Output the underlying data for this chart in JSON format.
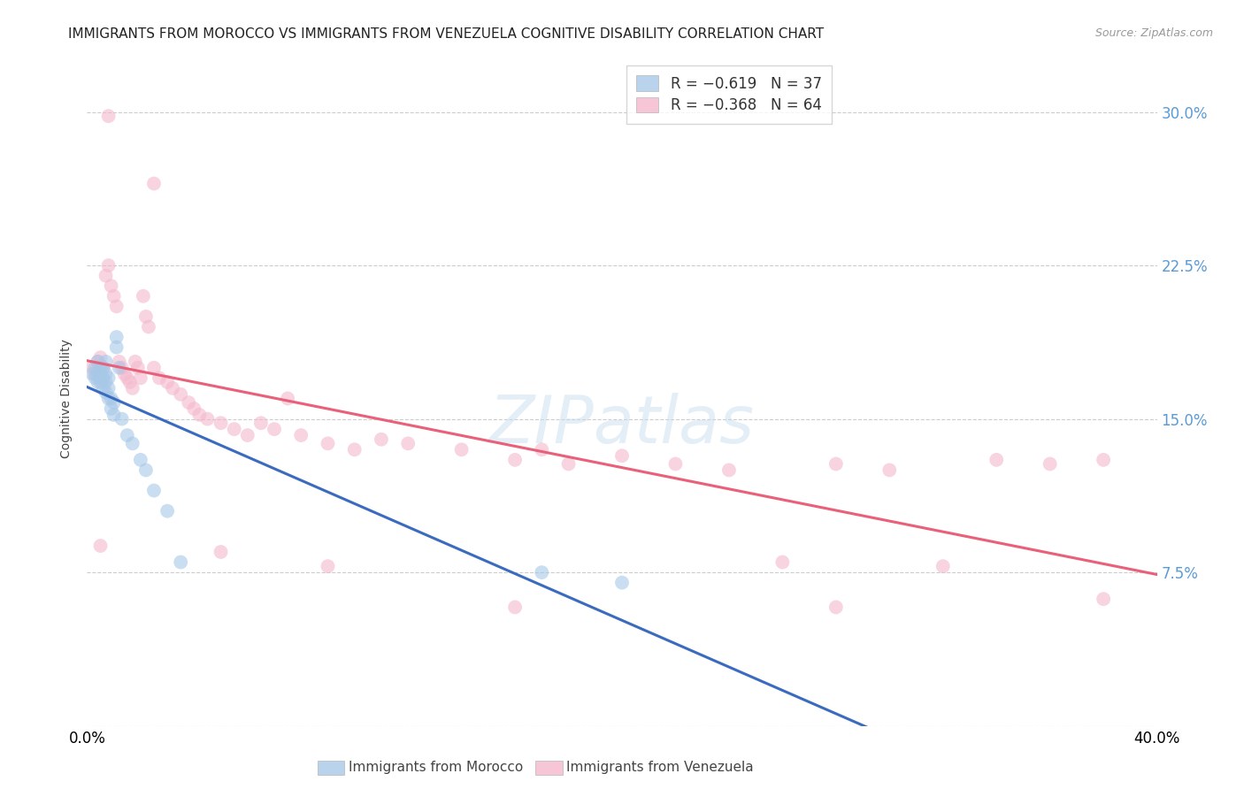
{
  "title": "IMMIGRANTS FROM MOROCCO VS IMMIGRANTS FROM VENEZUELA COGNITIVE DISABILITY CORRELATION CHART",
  "source": "Source: ZipAtlas.com",
  "ylabel": "Cognitive Disability",
  "ytick_values": [
    0.0,
    0.075,
    0.15,
    0.225,
    0.3
  ],
  "ytick_labels": [
    "",
    "7.5%",
    "15.0%",
    "22.5%",
    "30.0%"
  ],
  "xlim": [
    0.0,
    0.4
  ],
  "ylim": [
    0.0,
    0.32
  ],
  "morocco_color": "#a8c8e8",
  "venezuela_color": "#f4b8cc",
  "trendline_morocco_color": "#3a6bbf",
  "trendline_venezuela_color": "#e8607a",
  "background_color": "#ffffff",
  "watermark_text": "ZIPatlas",
  "morocco_x": [
    0.002,
    0.003,
    0.003,
    0.004,
    0.004,
    0.004,
    0.005,
    0.005,
    0.005,
    0.005,
    0.006,
    0.006,
    0.006,
    0.007,
    0.007,
    0.007,
    0.007,
    0.008,
    0.008,
    0.008,
    0.009,
    0.009,
    0.01,
    0.01,
    0.011,
    0.011,
    0.012,
    0.013,
    0.015,
    0.017,
    0.02,
    0.022,
    0.025,
    0.03,
    0.035,
    0.17,
    0.2
  ],
  "morocco_y": [
    0.172,
    0.175,
    0.17,
    0.168,
    0.172,
    0.178,
    0.173,
    0.17,
    0.175,
    0.168,
    0.165,
    0.17,
    0.175,
    0.163,
    0.168,
    0.172,
    0.178,
    0.16,
    0.165,
    0.17,
    0.155,
    0.16,
    0.152,
    0.158,
    0.185,
    0.19,
    0.175,
    0.15,
    0.142,
    0.138,
    0.13,
    0.125,
    0.115,
    0.105,
    0.08,
    0.075,
    0.07
  ],
  "venezuela_x": [
    0.002,
    0.003,
    0.004,
    0.005,
    0.006,
    0.007,
    0.008,
    0.009,
    0.01,
    0.011,
    0.012,
    0.013,
    0.014,
    0.015,
    0.016,
    0.017,
    0.018,
    0.019,
    0.02,
    0.021,
    0.022,
    0.023,
    0.025,
    0.027,
    0.03,
    0.032,
    0.035,
    0.038,
    0.04,
    0.042,
    0.045,
    0.05,
    0.055,
    0.06,
    0.065,
    0.07,
    0.075,
    0.08,
    0.09,
    0.1,
    0.11,
    0.12,
    0.14,
    0.16,
    0.18,
    0.2,
    0.22,
    0.24,
    0.26,
    0.28,
    0.3,
    0.32,
    0.34,
    0.36,
    0.38,
    0.008,
    0.025,
    0.05,
    0.09,
    0.16,
    0.005,
    0.17,
    0.28,
    0.38
  ],
  "venezuela_y": [
    0.175,
    0.172,
    0.178,
    0.18,
    0.175,
    0.22,
    0.225,
    0.215,
    0.21,
    0.205,
    0.178,
    0.175,
    0.172,
    0.17,
    0.168,
    0.165,
    0.178,
    0.175,
    0.17,
    0.21,
    0.2,
    0.195,
    0.175,
    0.17,
    0.168,
    0.165,
    0.162,
    0.158,
    0.155,
    0.152,
    0.15,
    0.148,
    0.145,
    0.142,
    0.148,
    0.145,
    0.16,
    0.142,
    0.138,
    0.135,
    0.14,
    0.138,
    0.135,
    0.13,
    0.128,
    0.132,
    0.128,
    0.125,
    0.08,
    0.128,
    0.125,
    0.078,
    0.13,
    0.128,
    0.13,
    0.298,
    0.265,
    0.085,
    0.078,
    0.058,
    0.088,
    0.135,
    0.058,
    0.062
  ]
}
